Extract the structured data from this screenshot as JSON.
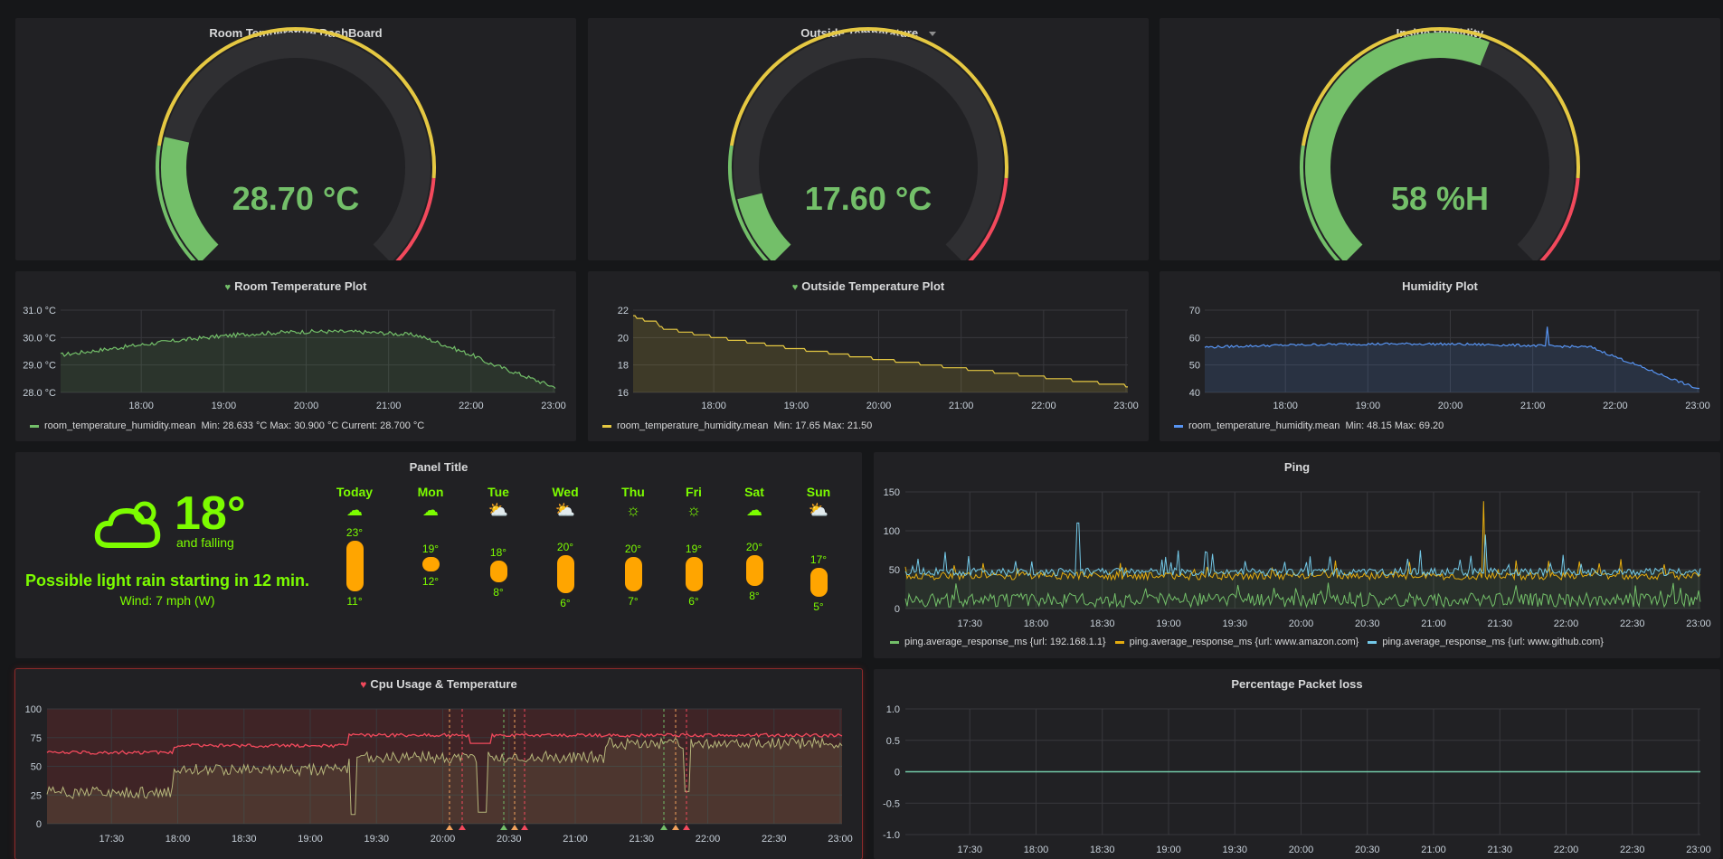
{
  "colors": {
    "green": "#73bf69",
    "yellow": "#e5c842",
    "red": "#f2495c",
    "blue": "#5794f2",
    "cyan": "#73c9e8",
    "weather": "#7cfc00",
    "pill": "#ffa500"
  },
  "gauges": [
    {
      "title": "Room Temperature DashBoard",
      "value": "28.70 °C",
      "fraction": 0.215,
      "has_menu": false
    },
    {
      "title": "Outside Temperature",
      "value": "17.60 °C",
      "fraction": 0.116,
      "has_menu": true,
      "menu_icon": "caret-down-icon"
    },
    {
      "title": "Inside Humidity",
      "value": "58 %H",
      "fraction": 0.58,
      "has_menu": false
    }
  ],
  "plots": [
    {
      "title": "Room Temperature Plot",
      "heart_icon": "heart-icon-green",
      "y_ticks": [
        "31.0 °C",
        "30.0 °C",
        "29.0 °C",
        "28.0 °C"
      ],
      "x_ticks": [
        "18:00",
        "19:00",
        "20:00",
        "21:00",
        "22:00",
        "23:00"
      ],
      "legend": {
        "name": "room_temperature_humidity.mean",
        "stats": "Min: 28.633 °C  Max: 30.900 °C  Current: 28.700 °C"
      }
    },
    {
      "title": "Outside Temperature Plot",
      "heart_icon": "heart-icon-green",
      "y_ticks": [
        "22",
        "20",
        "18",
        "16"
      ],
      "x_ticks": [
        "18:00",
        "19:00",
        "20:00",
        "21:00",
        "22:00",
        "23:00"
      ],
      "legend": {
        "name": "room_temperature_humidity.mean",
        "stats": "Min: 17.65  Max: 21.50"
      }
    },
    {
      "title": "Humidity Plot",
      "y_ticks": [
        "70",
        "60",
        "50",
        "40"
      ],
      "x_ticks": [
        "18:00",
        "19:00",
        "20:00",
        "21:00",
        "22:00",
        "23:00"
      ],
      "legend": {
        "name": "room_temperature_humidity.mean",
        "stats": "Min: 48.15  Max: 69.20"
      }
    }
  ],
  "weather": {
    "title": "Panel Title",
    "temp": "18°",
    "trend": "and falling",
    "summary": "Possible light rain starting in 12 min.",
    "wind": "Wind: 7 mph (W)",
    "days": [
      {
        "label": "Today",
        "icon": "rain-cloud-icon",
        "hi": "23°",
        "lo": "11°"
      },
      {
        "label": "Mon",
        "icon": "rain-cloud-icon",
        "hi": "19°",
        "lo": "12°"
      },
      {
        "label": "Tue",
        "icon": "partly-cloudy-icon",
        "hi": "18°",
        "lo": "8°"
      },
      {
        "label": "Wed",
        "icon": "partly-cloudy-icon",
        "hi": "20°",
        "lo": "6°"
      },
      {
        "label": "Thu",
        "icon": "sun-icon",
        "hi": "20°",
        "lo": "7°"
      },
      {
        "label": "Fri",
        "icon": "sun-icon",
        "hi": "19°",
        "lo": "6°"
      },
      {
        "label": "Sat",
        "icon": "rain-cloud-icon",
        "hi": "20°",
        "lo": "8°"
      },
      {
        "label": "Sun",
        "icon": "partly-cloudy-icon",
        "hi": "17°",
        "lo": "5°"
      }
    ]
  },
  "ping": {
    "title": "Ping",
    "y_ticks": [
      "150",
      "100",
      "50",
      "0"
    ],
    "x_ticks": [
      "17:30",
      "18:00",
      "18:30",
      "19:00",
      "19:30",
      "20:00",
      "20:30",
      "21:00",
      "21:30",
      "22:00",
      "22:30",
      "23:00"
    ],
    "legend": [
      {
        "name": "ping.average_response_ms {url: 192.168.1.1}",
        "color": "#73bf69"
      },
      {
        "name": "ping.average_response_ms {url: www.amazon.com}",
        "color": "#e5ac0e"
      },
      {
        "name": "ping.average_response_ms {url: www.github.com}",
        "color": "#73c9e8"
      }
    ]
  },
  "cpu": {
    "title": "Cpu Usage & Temperature",
    "heart_icon": "broken-heart-icon",
    "y_ticks": [
      "100",
      "75",
      "50",
      "25",
      "0"
    ],
    "x_ticks": [
      "17:30",
      "18:00",
      "18:30",
      "19:00",
      "19:30",
      "20:00",
      "20:30",
      "21:00",
      "21:30",
      "22:00",
      "22:30",
      "23:00"
    ]
  },
  "packet_loss": {
    "title": "Percentage Packet loss",
    "y_ticks": [
      "1.0",
      "0.5",
      "0",
      "-0.5",
      "-1.0"
    ],
    "x_ticks": [
      "17:30",
      "18:00",
      "18:30",
      "19:00",
      "19:30",
      "20:00",
      "20:30",
      "21:00",
      "21:30",
      "22:00",
      "22:30",
      "23:00"
    ]
  }
}
